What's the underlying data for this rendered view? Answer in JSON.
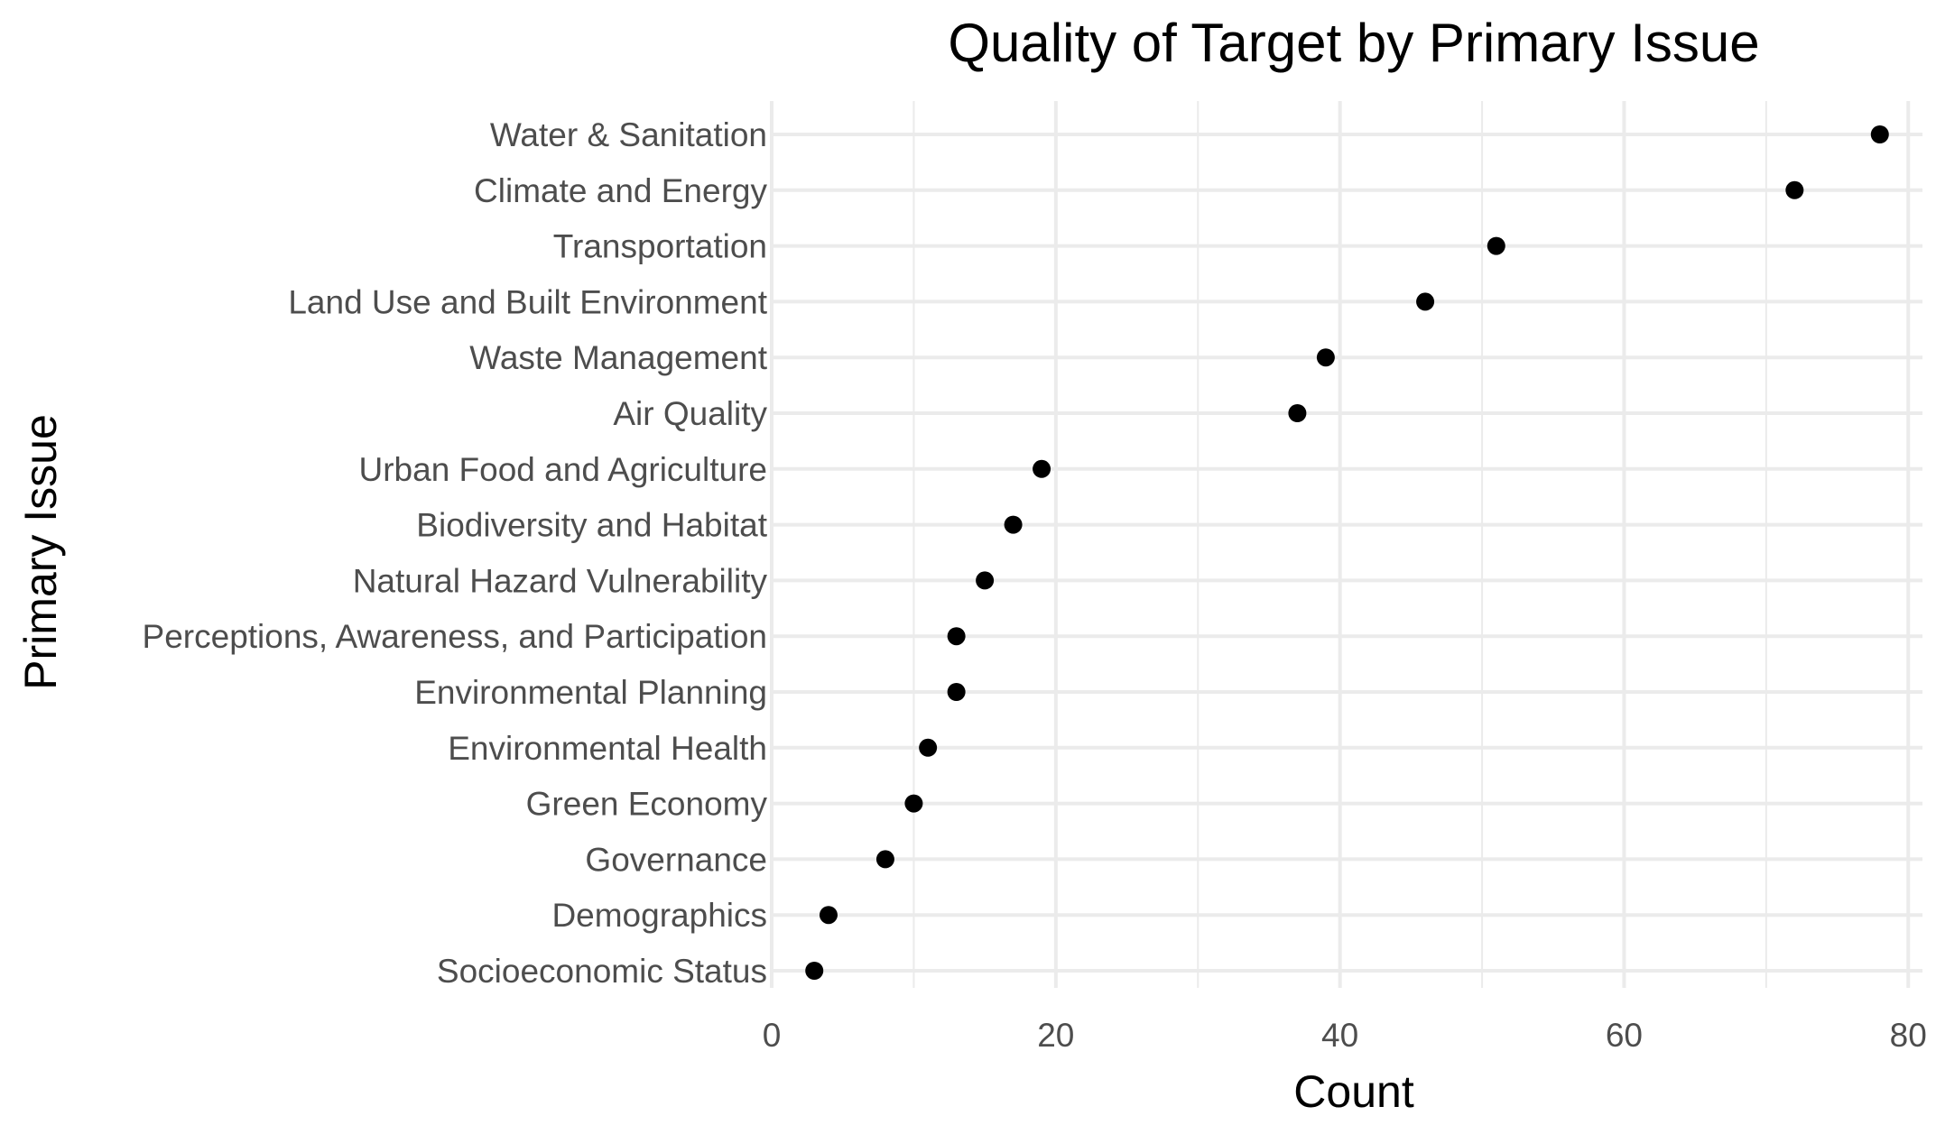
{
  "chart_data": {
    "type": "scatter",
    "title": "Quality of Target by Primary Issue",
    "xlabel": "Count",
    "ylabel": "Primary Issue",
    "xlim": [
      0,
      81
    ],
    "x_ticks": [
      0,
      20,
      40,
      60,
      80
    ],
    "x_tick_labels": [
      "0",
      "20",
      "40",
      "60",
      "80"
    ],
    "grid": true,
    "legend": "none",
    "point_color": "#000000",
    "categories": [
      "Water & Sanitation",
      "Climate and Energy",
      "Transportation",
      "Land Use and Built Environment",
      "Waste Management",
      "Air Quality",
      "Urban Food and Agriculture",
      "Biodiversity and Habitat",
      "Natural Hazard Vulnerability",
      "Perceptions, Awareness, and Participation",
      "Environmental Planning",
      "Environmental Health",
      "Green Economy",
      "Governance",
      "Demographics",
      "Socioeconomic Status"
    ],
    "values": [
      78,
      72,
      51,
      46,
      39,
      37,
      19,
      17,
      15,
      13,
      13,
      11,
      10,
      8,
      4,
      3
    ]
  }
}
